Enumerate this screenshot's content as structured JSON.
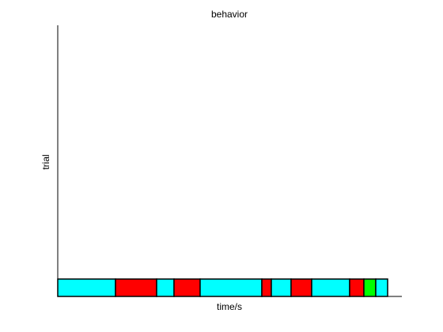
{
  "chart_data": {
    "type": "broken-bar",
    "title": "behavior",
    "xlabel": "time/s",
    "ylabel": "trial",
    "grid": false,
    "legend": "none",
    "ticks_visible": false,
    "x_range": [
      0,
      435
    ],
    "segments": [
      {
        "start": 0,
        "end": 73,
        "color": "#00ffff"
      },
      {
        "start": 73,
        "end": 125,
        "color": "#ff0000"
      },
      {
        "start": 125,
        "end": 147,
        "color": "#00ffff"
      },
      {
        "start": 147,
        "end": 180,
        "color": "#ff0000"
      },
      {
        "start": 180,
        "end": 258,
        "color": "#00ffff"
      },
      {
        "start": 258,
        "end": 270,
        "color": "#ff0000"
      },
      {
        "start": 270,
        "end": 295,
        "color": "#00ffff"
      },
      {
        "start": 295,
        "end": 321,
        "color": "#ff0000"
      },
      {
        "start": 321,
        "end": 369,
        "color": "#00ffff"
      },
      {
        "start": 369,
        "end": 387,
        "color": "#ff0000"
      },
      {
        "start": 387,
        "end": 402,
        "color": "#00ff00"
      },
      {
        "start": 402,
        "end": 417,
        "color": "#00ffff"
      }
    ]
  }
}
